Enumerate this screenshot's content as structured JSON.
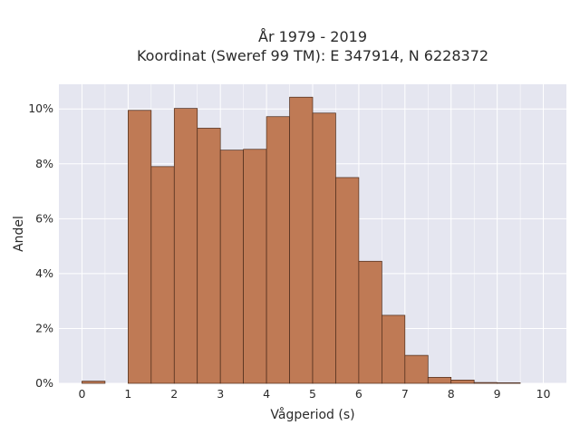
{
  "chart_data": {
    "type": "bar",
    "title": "År 1979 - 2019",
    "subtitle": "Koordinat (Sweref 99 TM): E 347914, N 6228372",
    "xlabel": "Vågperiod (s)",
    "ylabel": "Andel",
    "xlim": [
      -0.5,
      10.5
    ],
    "ylim": [
      0,
      0.109
    ],
    "bin_width": 0.5,
    "x_ticks": [
      0,
      1,
      2,
      3,
      4,
      5,
      6,
      7,
      8,
      9,
      10
    ],
    "x_tick_labels": [
      "0",
      "1",
      "2",
      "3",
      "4",
      "5",
      "6",
      "7",
      "8",
      "9",
      "10"
    ],
    "y_ticks": [
      0,
      0.02,
      0.04,
      0.06,
      0.08,
      0.1
    ],
    "y_tick_labels": [
      "0%",
      "2%",
      "4%",
      "6%",
      "8%",
      "10%"
    ],
    "bins": [
      {
        "start": 0.0,
        "value": 0.0008
      },
      {
        "start": 0.5,
        "value": 0.0
      },
      {
        "start": 1.0,
        "value": 0.0995
      },
      {
        "start": 1.5,
        "value": 0.079
      },
      {
        "start": 2.0,
        "value": 0.1002
      },
      {
        "start": 2.5,
        "value": 0.093
      },
      {
        "start": 3.0,
        "value": 0.085
      },
      {
        "start": 3.5,
        "value": 0.0853
      },
      {
        "start": 4.0,
        "value": 0.0972
      },
      {
        "start": 4.5,
        "value": 0.1043
      },
      {
        "start": 5.0,
        "value": 0.0985
      },
      {
        "start": 5.5,
        "value": 0.075
      },
      {
        "start": 6.0,
        "value": 0.0445
      },
      {
        "start": 6.5,
        "value": 0.0248
      },
      {
        "start": 7.0,
        "value": 0.0102
      },
      {
        "start": 7.5,
        "value": 0.0022
      },
      {
        "start": 8.0,
        "value": 0.0012
      },
      {
        "start": 8.5,
        "value": 0.0003
      },
      {
        "start": 9.0,
        "value": 0.0002
      },
      {
        "start": 9.5,
        "value": 0.0
      }
    ],
    "grid": true,
    "colors": {
      "bar_fill": "#bf7a55",
      "bar_edge": "#4a2a1a",
      "plot_background": "#e5e6f0",
      "grid": "#ffffff"
    }
  }
}
